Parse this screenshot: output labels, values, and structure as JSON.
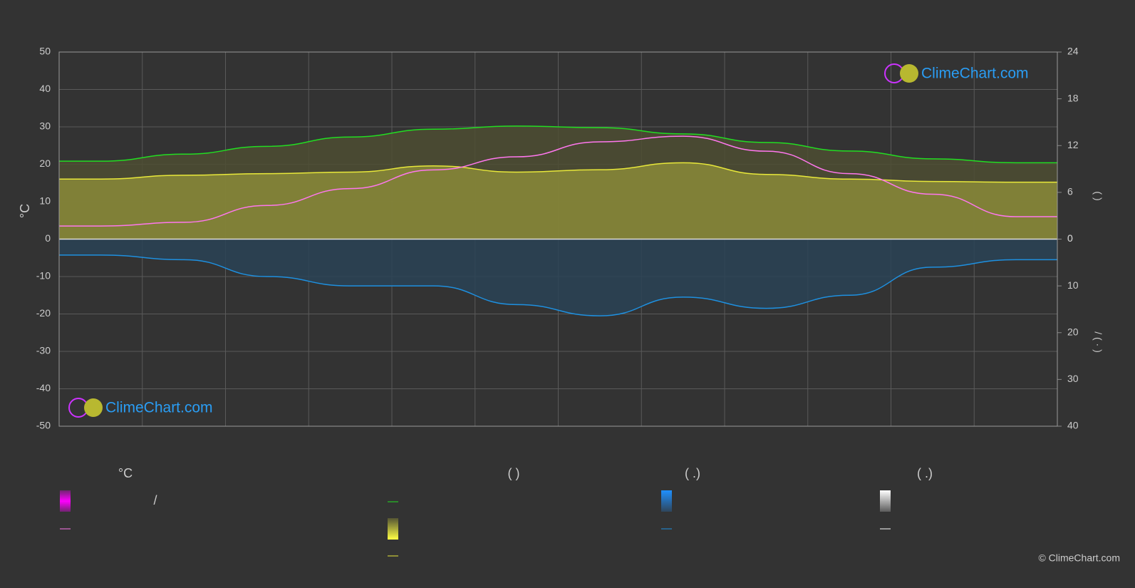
{
  "chart_data": {
    "type": "line",
    "categories": [
      null,
      null,
      null,
      null,
      null,
      null,
      null,
      null,
      null,
      null,
      null,
      null
    ],
    "ylabel": "°C",
    "y2label": "(      )",
    "y3label": "/   ( · )",
    "ylim": [
      -50,
      50
    ],
    "yticks": [
      -50,
      -40,
      -30,
      -20,
      -10,
      0,
      10,
      20,
      30,
      40,
      50
    ],
    "y2lim": [
      0,
      24
    ],
    "y2ticks": [
      0,
      6,
      12,
      18,
      24
    ],
    "y3lim": [
      0,
      40
    ],
    "y3ticks": [
      0,
      10,
      20,
      30,
      40
    ],
    "grid": true,
    "series": [
      {
        "color": "#22dd22",
        "fill": "#4d4d33",
        "axis": "y2",
        "values": [
          10.0,
          10.9,
          11.9,
          13.1,
          14.1,
          14.5,
          14.3,
          13.5,
          12.4,
          11.3,
          10.3,
          9.8
        ]
      },
      {
        "color": "#e8e83a",
        "fill": "#8a8a38",
        "axis": "y2",
        "values": [
          7.7,
          8.2,
          8.4,
          8.6,
          9.4,
          8.6,
          8.9,
          9.8,
          8.3,
          7.7,
          7.4,
          7.3
        ]
      },
      {
        "color": "#1e90e0",
        "fill": "#2a4356",
        "axis": "y3",
        "values": [
          3.4,
          4.4,
          8.0,
          10.0,
          10.0,
          14.0,
          16.4,
          12.4,
          14.8,
          12.0,
          6.0,
          4.4
        ]
      },
      {
        "color": "#ff77ee",
        "axis": "y",
        "values": [
          3.5,
          4.5,
          9.0,
          13.5,
          18.5,
          22.0,
          26.0,
          27.5,
          23.5,
          17.5,
          12.0,
          6.0
        ]
      }
    ],
    "logo": "ClimeChart.com",
    "copyright": "© ClimeChart.com",
    "legend_headers": [
      "°C",
      "(          )",
      "(   .)",
      "(   .)"
    ],
    "legend_fragment": "/"
  }
}
